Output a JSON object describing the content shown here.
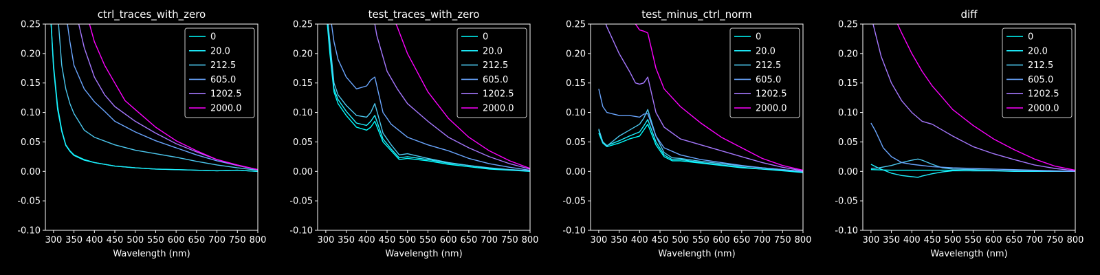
{
  "chart_data": [
    {
      "type": "line",
      "title": "ctrl_traces_with_zero",
      "xlabel": "Wavelength (nm)",
      "ylabel": "",
      "xlim": [
        280,
        800
      ],
      "ylim": [
        -0.1,
        0.25
      ],
      "x_ticks": [
        300,
        350,
        400,
        450,
        500,
        550,
        600,
        650,
        700,
        750,
        800
      ],
      "y_ticks": [
        -0.1,
        -0.05,
        0.0,
        0.05,
        0.1,
        0.15,
        0.2,
        0.25
      ],
      "grid": false,
      "legend": "top-right",
      "series": [
        {
          "name": "0",
          "color": "#00ffff",
          "x": [
            290,
            300,
            310,
            320,
            330,
            340,
            350,
            375,
            400,
            450,
            500,
            550,
            600,
            650,
            700,
            750,
            800
          ],
          "y": [
            0.3,
            0.18,
            0.11,
            0.07,
            0.045,
            0.035,
            0.028,
            0.02,
            0.015,
            0.009,
            0.006,
            0.004,
            0.003,
            0.002,
            0.001,
            0.002,
            0.0
          ]
        },
        {
          "name": "20.0",
          "color": "#1ef0ff",
          "x": [
            290,
            300,
            310,
            320,
            330,
            340,
            350,
            375,
            400,
            450,
            500,
            550,
            600,
            650,
            700,
            750,
            800
          ],
          "y": [
            0.3,
            0.175,
            0.105,
            0.068,
            0.044,
            0.034,
            0.027,
            0.019,
            0.015,
            0.009,
            0.006,
            0.004,
            0.003,
            0.002,
            0.001,
            0.002,
            0.0
          ]
        },
        {
          "name": "212.5",
          "color": "#4cc9f0",
          "x": [
            310,
            320,
            330,
            340,
            350,
            375,
            400,
            450,
            500,
            550,
            600,
            650,
            700,
            750,
            800
          ],
          "y": [
            0.27,
            0.18,
            0.14,
            0.115,
            0.098,
            0.07,
            0.058,
            0.045,
            0.036,
            0.03,
            0.024,
            0.017,
            0.011,
            0.006,
            0.002
          ]
        },
        {
          "name": "605.0",
          "color": "#6aa6ff",
          "x": [
            330,
            340,
            350,
            375,
            400,
            425,
            450,
            500,
            550,
            600,
            650,
            700,
            750,
            800
          ],
          "y": [
            0.27,
            0.22,
            0.18,
            0.14,
            0.118,
            0.102,
            0.085,
            0.067,
            0.052,
            0.04,
            0.028,
            0.018,
            0.01,
            0.003
          ]
        },
        {
          "name": "1202.5",
          "color": "#a678ff",
          "x": [
            355,
            375,
            400,
            425,
            450,
            500,
            550,
            600,
            650,
            700,
            750,
            800
          ],
          "y": [
            0.27,
            0.21,
            0.16,
            0.13,
            0.11,
            0.085,
            0.065,
            0.047,
            0.033,
            0.02,
            0.01,
            0.003
          ]
        },
        {
          "name": "2000.0",
          "color": "#ff00ff",
          "x": [
            380,
            400,
            425,
            450,
            475,
            500,
            550,
            600,
            650,
            700,
            750,
            800
          ],
          "y": [
            0.27,
            0.22,
            0.18,
            0.15,
            0.12,
            0.105,
            0.075,
            0.052,
            0.035,
            0.02,
            0.011,
            0.003
          ]
        }
      ]
    },
    {
      "type": "line",
      "title": "test_traces_with_zero",
      "xlabel": "Wavelength (nm)",
      "ylabel": "",
      "xlim": [
        280,
        800
      ],
      "ylim": [
        -0.1,
        0.25
      ],
      "x_ticks": [
        300,
        350,
        400,
        450,
        500,
        550,
        600,
        650,
        700,
        750,
        800
      ],
      "y_ticks": [
        -0.1,
        -0.05,
        0.0,
        0.05,
        0.1,
        0.15,
        0.2,
        0.25
      ],
      "grid": false,
      "legend": "top-right",
      "series": [
        {
          "name": "0",
          "color": "#00ffff",
          "x": [
            300,
            310,
            320,
            330,
            350,
            375,
            400,
            410,
            420,
            440,
            460,
            480,
            500,
            550,
            600,
            650,
            700,
            750,
            800
          ],
          "y": [
            0.28,
            0.2,
            0.135,
            0.115,
            0.095,
            0.075,
            0.07,
            0.075,
            0.085,
            0.05,
            0.035,
            0.02,
            0.022,
            0.018,
            0.012,
            0.008,
            0.004,
            0.002,
            0.0
          ]
        },
        {
          "name": "20.0",
          "color": "#1ef0ff",
          "x": [
            300,
            310,
            320,
            330,
            350,
            375,
            400,
            410,
            420,
            440,
            460,
            480,
            500,
            550,
            600,
            650,
            700,
            750,
            800
          ],
          "y": [
            0.29,
            0.21,
            0.14,
            0.122,
            0.102,
            0.082,
            0.078,
            0.085,
            0.095,
            0.055,
            0.038,
            0.023,
            0.025,
            0.02,
            0.014,
            0.01,
            0.005,
            0.003,
            0.001
          ]
        },
        {
          "name": "212.5",
          "color": "#4cc9f0",
          "x": [
            300,
            310,
            320,
            330,
            350,
            375,
            400,
            410,
            420,
            440,
            460,
            480,
            500,
            550,
            600,
            650,
            700,
            750,
            800
          ],
          "y": [
            0.29,
            0.22,
            0.15,
            0.13,
            0.112,
            0.095,
            0.092,
            0.1,
            0.115,
            0.065,
            0.045,
            0.028,
            0.03,
            0.022,
            0.015,
            0.01,
            0.006,
            0.003,
            0.001
          ]
        },
        {
          "name": "605.0",
          "color": "#6aa6ff",
          "x": [
            310,
            320,
            330,
            350,
            375,
            400,
            410,
            420,
            440,
            460,
            500,
            550,
            600,
            650,
            700,
            750,
            800
          ],
          "y": [
            0.27,
            0.22,
            0.19,
            0.16,
            0.14,
            0.145,
            0.155,
            0.16,
            0.1,
            0.08,
            0.058,
            0.045,
            0.035,
            0.022,
            0.013,
            0.007,
            0.002
          ]
        },
        {
          "name": "1202.5",
          "color": "#a678ff",
          "x": [
            415,
            425,
            450,
            475,
            500,
            550,
            600,
            650,
            700,
            750,
            800
          ],
          "y": [
            0.27,
            0.23,
            0.17,
            0.14,
            0.115,
            0.085,
            0.058,
            0.04,
            0.025,
            0.013,
            0.004
          ]
        },
        {
          "name": "2000.0",
          "color": "#ff00ff",
          "x": [
            460,
            475,
            500,
            550,
            600,
            650,
            700,
            750,
            800
          ],
          "y": [
            0.27,
            0.245,
            0.2,
            0.135,
            0.09,
            0.058,
            0.035,
            0.018,
            0.005
          ]
        }
      ]
    },
    {
      "type": "line",
      "title": "test_minus_ctrl_norm",
      "xlabel": "Wavelength (nm)",
      "ylabel": "",
      "xlim": [
        280,
        800
      ],
      "ylim": [
        -0.1,
        0.25
      ],
      "x_ticks": [
        300,
        350,
        400,
        450,
        500,
        550,
        600,
        650,
        700,
        750,
        800
      ],
      "y_ticks": [
        -0.1,
        -0.05,
        0.0,
        0.05,
        0.1,
        0.15,
        0.2,
        0.25
      ],
      "grid": false,
      "legend": "top-right",
      "series": [
        {
          "name": "0",
          "color": "#00ffff",
          "x": [
            300,
            310,
            320,
            350,
            375,
            400,
            410,
            420,
            440,
            460,
            480,
            500,
            550,
            600,
            650,
            700,
            750,
            800
          ],
          "y": [
            0.065,
            0.048,
            0.042,
            0.048,
            0.055,
            0.06,
            0.07,
            0.08,
            0.045,
            0.025,
            0.018,
            0.018,
            0.014,
            0.01,
            0.006,
            0.004,
            0.001,
            -0.002
          ]
        },
        {
          "name": "20.0",
          "color": "#1ef0ff",
          "x": [
            300,
            310,
            320,
            350,
            375,
            400,
            410,
            420,
            440,
            460,
            480,
            500,
            550,
            600,
            650,
            700,
            750,
            800
          ],
          "y": [
            0.07,
            0.05,
            0.044,
            0.052,
            0.06,
            0.067,
            0.077,
            0.088,
            0.05,
            0.028,
            0.02,
            0.02,
            0.015,
            0.011,
            0.007,
            0.004,
            0.002,
            -0.001
          ]
        },
        {
          "name": "212.5",
          "color": "#4cc9f0",
          "x": [
            300,
            310,
            320,
            350,
            375,
            400,
            410,
            420,
            440,
            460,
            480,
            500,
            550,
            600,
            650,
            700,
            750,
            800
          ],
          "y": [
            0.072,
            0.05,
            0.043,
            0.06,
            0.07,
            0.08,
            0.09,
            0.105,
            0.06,
            0.032,
            0.023,
            0.022,
            0.017,
            0.013,
            0.009,
            0.006,
            0.003,
            0.0
          ]
        },
        {
          "name": "605.0",
          "color": "#6aa6ff",
          "x": [
            300,
            310,
            320,
            350,
            375,
            400,
            410,
            420,
            440,
            460,
            500,
            550,
            600,
            650,
            700,
            750,
            800
          ],
          "y": [
            0.14,
            0.11,
            0.1,
            0.095,
            0.095,
            0.092,
            0.097,
            0.098,
            0.06,
            0.04,
            0.028,
            0.02,
            0.015,
            0.01,
            0.006,
            0.003,
            0.0
          ]
        },
        {
          "name": "1202.5",
          "color": "#a678ff",
          "x": [
            310,
            320,
            330,
            350,
            375,
            390,
            400,
            410,
            420,
            440,
            460,
            500,
            550,
            600,
            650,
            700,
            750,
            800
          ],
          "y": [
            0.265,
            0.245,
            0.23,
            0.2,
            0.17,
            0.15,
            0.148,
            0.15,
            0.16,
            0.1,
            0.075,
            0.055,
            0.045,
            0.035,
            0.025,
            0.015,
            0.007,
            0.001
          ]
        },
        {
          "name": "2000.0",
          "color": "#ff00ff",
          "x": [
            375,
            400,
            410,
            420,
            440,
            460,
            500,
            550,
            600,
            650,
            700,
            750,
            800
          ],
          "y": [
            0.265,
            0.24,
            0.238,
            0.235,
            0.175,
            0.14,
            0.11,
            0.082,
            0.058,
            0.04,
            0.022,
            0.01,
            0.002
          ]
        }
      ]
    },
    {
      "type": "line",
      "title": "diff",
      "xlabel": "Wavelength (nm)",
      "ylabel": "",
      "xlim": [
        280,
        800
      ],
      "ylim": [
        -0.1,
        0.25
      ],
      "x_ticks": [
        300,
        350,
        400,
        450,
        500,
        550,
        600,
        650,
        700,
        750,
        800
      ],
      "y_ticks": [
        -0.1,
        -0.05,
        0.0,
        0.05,
        0.1,
        0.15,
        0.2,
        0.25
      ],
      "grid": false,
      "legend": "top-right",
      "series": [
        {
          "name": "0",
          "color": "#00ffff",
          "x": [
            300,
            350,
            400,
            450,
            500,
            550,
            600,
            650,
            700,
            750,
            800
          ],
          "y": [
            0.003,
            0.002,
            0.002,
            0.002,
            0.002,
            0.001,
            0.001,
            0.001,
            0.0,
            0.0,
            0.0
          ]
        },
        {
          "name": "20.0",
          "color": "#1ef0ff",
          "x": [
            300,
            320,
            350,
            375,
            400,
            415,
            425,
            450,
            475,
            500,
            550,
            600,
            650,
            700,
            750,
            800
          ],
          "y": [
            0.012,
            0.005,
            -0.003,
            -0.007,
            -0.009,
            -0.01,
            -0.008,
            -0.004,
            -0.001,
            0.001,
            0.001,
            0.001,
            0.0,
            0.0,
            0.0,
            0.0
          ]
        },
        {
          "name": "212.5",
          "color": "#4cc9f0",
          "x": [
            300,
            320,
            350,
            375,
            400,
            415,
            425,
            450,
            475,
            500,
            550,
            600,
            650,
            700,
            750,
            800
          ],
          "y": [
            0.005,
            0.006,
            0.01,
            0.015,
            0.019,
            0.021,
            0.019,
            0.012,
            0.006,
            0.004,
            0.003,
            0.002,
            0.001,
            0.001,
            0.0,
            0.0
          ]
        },
        {
          "name": "605.0",
          "color": "#6aa6ff",
          "x": [
            300,
            310,
            320,
            330,
            350,
            375,
            400,
            450,
            500,
            550,
            600,
            650,
            700,
            750,
            800
          ],
          "y": [
            0.082,
            0.07,
            0.055,
            0.04,
            0.025,
            0.015,
            0.012,
            0.008,
            0.006,
            0.005,
            0.004,
            0.003,
            0.002,
            0.001,
            0.0
          ]
        },
        {
          "name": "1202.5",
          "color": "#a678ff",
          "x": [
            305,
            325,
            350,
            375,
            400,
            425,
            450,
            475,
            500,
            550,
            600,
            650,
            700,
            750,
            800
          ],
          "y": [
            0.25,
            0.195,
            0.15,
            0.12,
            0.1,
            0.085,
            0.08,
            0.07,
            0.06,
            0.042,
            0.03,
            0.02,
            0.011,
            0.005,
            0.001
          ]
        },
        {
          "name": "2000.0",
          "color": "#ff00ff",
          "x": [
            365,
            375,
            400,
            425,
            450,
            475,
            500,
            550,
            600,
            650,
            700,
            750,
            800
          ],
          "y": [
            0.25,
            0.235,
            0.2,
            0.17,
            0.145,
            0.125,
            0.105,
            0.078,
            0.055,
            0.037,
            0.021,
            0.009,
            0.002
          ]
        }
      ]
    }
  ]
}
